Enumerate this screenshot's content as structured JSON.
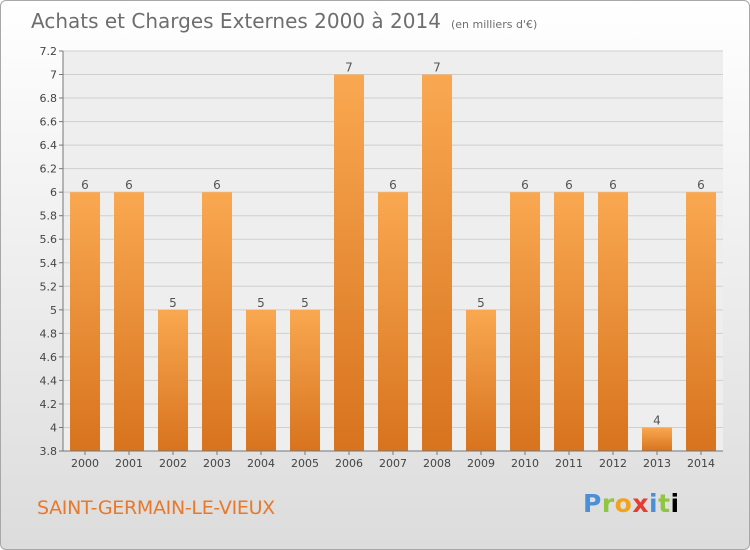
{
  "header": {
    "title": "Achats et Charges Externes 2000 à 2014",
    "unit": "(en milliers d'€)"
  },
  "footer": {
    "town": "SAINT-GERMAIN-LE-VIEUX",
    "logo_letters": [
      "P",
      "r",
      "o",
      "x",
      "i",
      "t",
      "i"
    ]
  },
  "colors": {
    "bar_light": "#f9a851",
    "bar_dark": "#d8731e",
    "grid": "#cfcfcf"
  },
  "chart_data": {
    "type": "bar",
    "title": "Achats et Charges Externes 2000 à 2014",
    "subtitle": "(en milliers d'€)",
    "xlabel": "",
    "ylabel": "",
    "categories": [
      "2000",
      "2001",
      "2002",
      "2003",
      "2004",
      "2005",
      "2006",
      "2007",
      "2008",
      "2009",
      "2010",
      "2011",
      "2012",
      "2013",
      "2014"
    ],
    "values": [
      6,
      6,
      5,
      6,
      5,
      5,
      7,
      6,
      7,
      5,
      6,
      6,
      6,
      4,
      6
    ],
    "data_labels": [
      "6",
      "6",
      "5",
      "6",
      "5",
      "5",
      "7",
      "6",
      "7",
      "5",
      "6",
      "6",
      "6",
      "4",
      "6"
    ],
    "ylim": [
      3.8,
      7.2
    ],
    "yticks": [
      3.8,
      4,
      4.2,
      4.4,
      4.6,
      4.8,
      5,
      5.2,
      5.4,
      5.6,
      5.8,
      6,
      6.2,
      6.4,
      6.6,
      6.8,
      7,
      7.2
    ],
    "ytick_labels": [
      "3.8",
      "4",
      "4.2",
      "4.4",
      "4.6",
      "4.8",
      "5",
      "5.2",
      "5.4",
      "5.6",
      "5.8",
      "6",
      "6.2",
      "6.4",
      "6.6",
      "6.8",
      "7",
      "7.2"
    ],
    "grid": true,
    "legend": "none"
  }
}
